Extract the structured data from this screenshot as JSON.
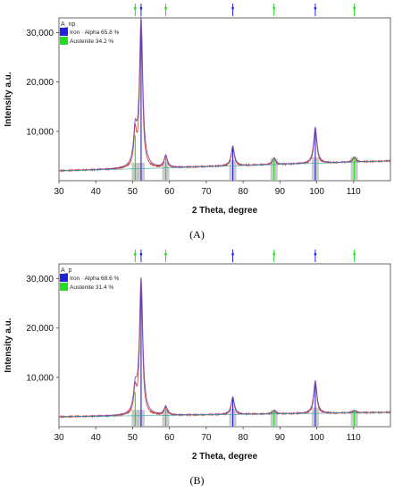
{
  "chart_data": [
    {
      "type": "line",
      "caption": "(A)",
      "sample_label": "A_np",
      "xlabel": "2 Theta, degree",
      "ylabel": "Intensity a.u.",
      "xlim": [
        30,
        120
      ],
      "ylim": [
        0,
        33000
      ],
      "xticks": [
        "30",
        "40",
        "50",
        "60",
        "70",
        "80",
        "90",
        "100",
        "110"
      ],
      "yticks": [
        "10,000",
        "20,000",
        "30,000"
      ],
      "legend": [
        {
          "label": "Iron · Alpha 65.8 %",
          "color": "#2222dd"
        },
        {
          "label": "Austenite 34.2 %",
          "color": "#22dd22"
        }
      ],
      "series": [
        {
          "name": "Iron · Alpha",
          "color": "#2222dd",
          "peaks": [
            {
              "x": 52.3,
              "y": 32500
            },
            {
              "x": 77.2,
              "y": 7000
            },
            {
              "x": 99.6,
              "y": 10800
            }
          ]
        },
        {
          "name": "Austenite",
          "color": "#22dd22",
          "peaks": [
            {
              "x": 50.7,
              "y": 9200
            },
            {
              "x": 59.0,
              "y": 5000
            },
            {
              "x": 88.4,
              "y": 4600
            },
            {
              "x": 110.2,
              "y": 4800
            }
          ]
        }
      ],
      "background": [
        {
          "x": 30,
          "y": 2000
        },
        {
          "x": 60,
          "y": 2600
        },
        {
          "x": 90,
          "y": 3300
        },
        {
          "x": 120,
          "y": 4000
        }
      ]
    },
    {
      "type": "line",
      "caption": "(B)",
      "sample_label": "A_p",
      "xlabel": "2 Theta, degree",
      "ylabel": "Intensity a.u.",
      "xlim": [
        30,
        120
      ],
      "ylim": [
        0,
        33000
      ],
      "xticks": [
        "30",
        "40",
        "50",
        "60",
        "70",
        "80",
        "90",
        "100",
        "110"
      ],
      "yticks": [
        "10,000",
        "20,000",
        "30,000"
      ],
      "legend": [
        {
          "label": "Iron · Alpha 68.6 %",
          "color": "#2222dd"
        },
        {
          "label": "Austenite 31.4 %",
          "color": "#22dd22"
        }
      ],
      "series": [
        {
          "name": "Iron · Alpha",
          "color": "#2222dd",
          "peaks": [
            {
              "x": 52.3,
              "y": 29800
            },
            {
              "x": 77.2,
              "y": 6000
            },
            {
              "x": 99.6,
              "y": 9300
            }
          ]
        },
        {
          "name": "Austenite",
          "color": "#22dd22",
          "peaks": [
            {
              "x": 50.7,
              "y": 7000
            },
            {
              "x": 59.0,
              "y": 4000
            },
            {
              "x": 88.4,
              "y": 3300
            },
            {
              "x": 110.2,
              "y": 3300
            }
          ]
        }
      ],
      "background": [
        {
          "x": 30,
          "y": 2000
        },
        {
          "x": 60,
          "y": 2300
        },
        {
          "x": 90,
          "y": 2600
        },
        {
          "x": 120,
          "y": 2900
        }
      ]
    }
  ]
}
